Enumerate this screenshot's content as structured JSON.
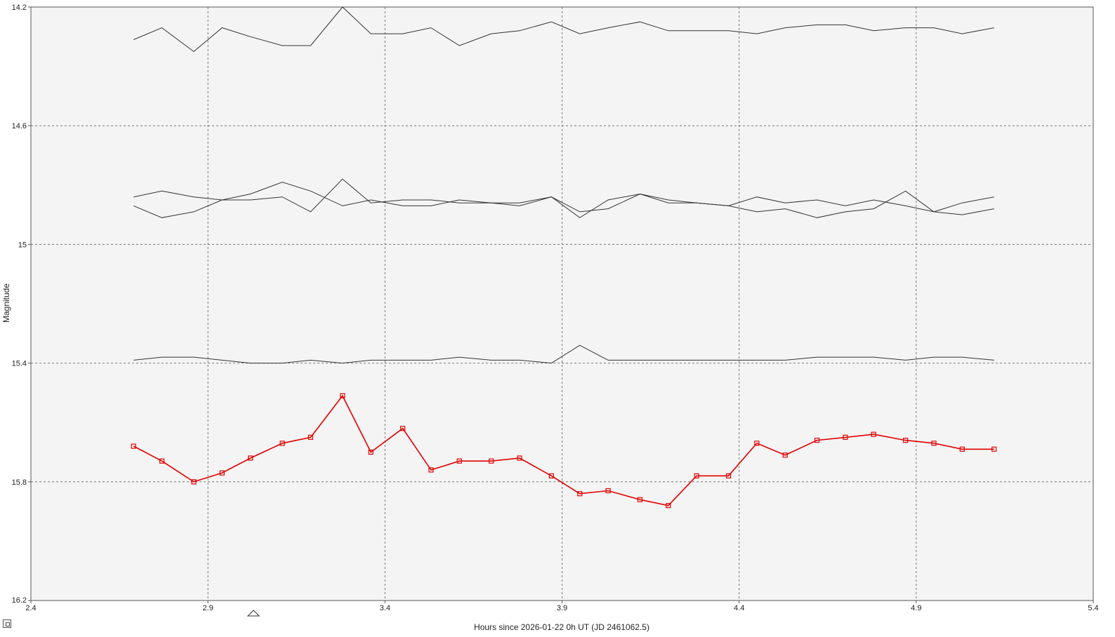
{
  "chart_data": {
    "type": "line",
    "xlabel": "Hours since 2026-01-22 0h UT (JD 2461062.5)",
    "ylabel": "Magnitude",
    "xlim": [
      2.4,
      5.4
    ],
    "ylim": [
      14.2,
      16.2
    ],
    "y_inverted": true,
    "grid": true,
    "x_ticks": [
      "2.4",
      "2.9",
      "3.4",
      "3.9",
      "4.4",
      "4.9",
      "5.4"
    ],
    "y_ticks": [
      "14.2",
      "14.6",
      "15",
      "15.4",
      "15.8",
      "16.2"
    ],
    "x": [
      2.69,
      2.77,
      2.86,
      2.94,
      3.02,
      3.11,
      3.19,
      3.28,
      3.36,
      3.45,
      3.53,
      3.61,
      3.7,
      3.78,
      3.87,
      3.95,
      4.03,
      4.12,
      4.2,
      4.28,
      4.37,
      4.45,
      4.53,
      4.62,
      4.7,
      4.78,
      4.87,
      4.95,
      5.03,
      5.12
    ],
    "series": [
      {
        "color": "#333333",
        "values": [
          14.31,
          14.27,
          14.35,
          14.27,
          14.3,
          14.33,
          14.33,
          14.2,
          14.29,
          14.29,
          14.27,
          14.33,
          14.29,
          14.28,
          14.25,
          14.29,
          14.27,
          14.25,
          14.28,
          14.28,
          14.28,
          14.29,
          14.27,
          14.26,
          14.26,
          14.28,
          14.27,
          14.27,
          14.29,
          14.27
        ]
      },
      {
        "color": "#333333",
        "values": [
          14.84,
          14.82,
          14.84,
          14.85,
          14.85,
          14.84,
          14.89,
          14.78,
          14.86,
          14.85,
          14.85,
          14.86,
          14.86,
          14.87,
          14.84,
          14.91,
          14.85,
          14.83,
          14.86,
          14.86,
          14.87,
          14.89,
          14.88,
          14.91,
          14.89,
          14.88,
          14.82,
          14.89,
          14.86,
          14.84
        ]
      },
      {
        "color": "#333333",
        "values": [
          14.87,
          14.91,
          14.89,
          14.85,
          14.83,
          14.79,
          14.82,
          14.87,
          14.85,
          14.87,
          14.87,
          14.85,
          14.86,
          14.86,
          14.84,
          14.89,
          14.88,
          14.83,
          14.85,
          14.86,
          14.87,
          14.84,
          14.86,
          14.85,
          14.87,
          14.85,
          14.87,
          14.89,
          14.9,
          14.88
        ]
      },
      {
        "color": "#333333",
        "values": [
          15.39,
          15.38,
          15.38,
          15.39,
          15.4,
          15.4,
          15.39,
          15.4,
          15.39,
          15.39,
          15.39,
          15.38,
          15.39,
          15.39,
          15.4,
          15.34,
          15.39,
          15.39,
          15.39,
          15.39,
          15.39,
          15.39,
          15.39,
          15.38,
          15.38,
          15.38,
          15.39,
          15.38,
          15.38,
          15.39
        ]
      },
      {
        "color": "#e00000",
        "markers": "square",
        "values": [
          15.68,
          15.73,
          15.8,
          15.77,
          15.72,
          15.67,
          15.65,
          15.51,
          15.7,
          15.62,
          15.76,
          15.73,
          15.73,
          15.72,
          15.78,
          15.84,
          15.83,
          15.86,
          15.88,
          15.78,
          15.78,
          15.67,
          15.71,
          15.66,
          15.65,
          15.64,
          15.66,
          15.67,
          15.69,
          15.69
        ]
      }
    ]
  }
}
